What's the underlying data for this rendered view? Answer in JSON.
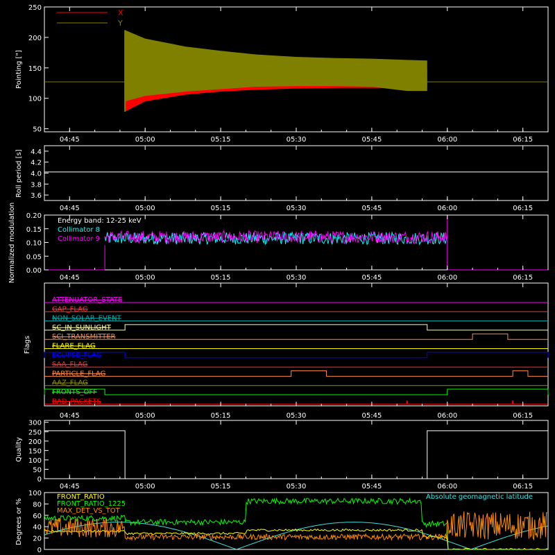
{
  "x_ticks": [
    "04:45",
    "05:00",
    "05:15",
    "05:30",
    "05:45",
    "06:00",
    "06:15"
  ],
  "chart_data": [
    {
      "type": "line",
      "id": "pointing",
      "ylabel": "Pointing [\"]",
      "ylim": [
        45,
        250
      ],
      "yticks": [
        50,
        100,
        150,
        200,
        250
      ],
      "legend": "top-left",
      "series": [
        {
          "name": "X",
          "color": "#ff0000"
        },
        {
          "name": "Y",
          "color": "#808000"
        }
      ],
      "envelope": {
        "x": [
          "04:56",
          "05:00",
          "05:08",
          "05:15",
          "05:22",
          "05:30",
          "05:38",
          "05:45",
          "05:52",
          "05:56"
        ],
        "x_upper": [
          212,
          175,
          160,
          156,
          155,
          152,
          150,
          148,
          147,
          147
        ],
        "x_lower": [
          78,
          95,
          106,
          111,
          114,
          116,
          117,
          117,
          117,
          117
        ],
        "y_upper": [
          212,
          198,
          185,
          178,
          172,
          168,
          166,
          165,
          163,
          162
        ],
        "y_lower": [
          95,
          104,
          111,
          115,
          119,
          120,
          120,
          119,
          112,
          112
        ]
      },
      "baseline": 127
    },
    {
      "type": "line",
      "id": "roll",
      "ylabel": "Roll period [s]",
      "ylim": [
        3.5,
        4.5
      ],
      "yticks": [
        "3.6",
        "3.8",
        "4.0",
        "4.2",
        "4.4"
      ],
      "value": 4.02
    },
    {
      "type": "line",
      "id": "modulation",
      "ylabel": "Normalized modulation",
      "ylim": [
        0,
        0.2
      ],
      "yticks": [
        "0.00",
        "0.05",
        "0.10",
        "0.15",
        "0.20"
      ],
      "annotation": "Energy band: 12-25 keV",
      "legend": "top-left",
      "series": [
        {
          "name": "Collimator 8",
          "color": "#00ffff",
          "mean": 0.115
        },
        {
          "name": "Collimator 9",
          "color": "#ff00ff",
          "mean": 0.12
        }
      ],
      "start": "04:52",
      "end": "06:00"
    },
    {
      "type": "line",
      "id": "flags",
      "ylabel": "Flags",
      "flags": [
        {
          "name": "ATTENUATOR_STATE",
          "color": "#ff00ff",
          "segments": []
        },
        {
          "name": "GAP_FLAG",
          "color": "#ff3030",
          "segments": []
        },
        {
          "name": "NON_SOLAR_EVENT",
          "color": "#00b0b0",
          "segments": []
        },
        {
          "name": "SC_IN_SUNLIGHT",
          "color": "#ffffa0",
          "segments": [
            [
              "04:56",
              "05:56"
            ]
          ]
        },
        {
          "name": "SCI_TRANSMITTER",
          "color": "#ff8c40",
          "segments": [
            [
              "06:05",
              "06:12"
            ]
          ]
        },
        {
          "name": "FLARE_FLAG",
          "color": "#ffff00",
          "segments": []
        },
        {
          "name": "ECLIPSE_FLAG",
          "color": "#0000ff",
          "segments": [
            [
              "04:40",
              "04:56"
            ],
            [
              "05:56",
              "06:20"
            ]
          ]
        },
        {
          "name": "SAA_FLAG",
          "color": "#ff3030",
          "segments": []
        },
        {
          "name": "PARTICLE_FLAG",
          "color": "#ff8c40",
          "segments": [
            [
              "05:29",
              "05:36"
            ],
            [
              "06:13",
              "06:16"
            ]
          ]
        },
        {
          "name": "AAZ_FLAG",
          "color": "#909000",
          "segments": []
        },
        {
          "name": "FRONTS_OFF",
          "color": "#00ff00",
          "segments": [
            [
              "04:40",
              "04:52"
            ],
            [
              "06:00",
              "06:20"
            ]
          ]
        },
        {
          "name": "BAD_PACKETS",
          "color": "#ff0000",
          "segments": []
        }
      ]
    },
    {
      "type": "line",
      "id": "quality",
      "ylabel": "Quality",
      "ylim": [
        0,
        310
      ],
      "yticks": [
        0,
        50,
        100,
        150,
        200,
        250,
        300
      ],
      "value_high": 255,
      "value_low": 0,
      "high_segments": [
        [
          "04:40",
          "04:56"
        ],
        [
          "05:56",
          "06:20"
        ]
      ]
    },
    {
      "type": "line",
      "id": "ratios",
      "ylabel": "Degrees or %",
      "ylim": [
        0,
        100
      ],
      "yticks": [
        0,
        20,
        40,
        60,
        80,
        100
      ],
      "legend": "top-left",
      "series": [
        {
          "name": "FRONT_RATIO",
          "color": "#ffff00"
        },
        {
          "name": "FRONT_RATIO_1225",
          "color": "#00ff00"
        },
        {
          "name": "MAX_DET_VS_TOT",
          "color": "#ff8c00"
        },
        {
          "name": "Absolute geomagnetic latitude",
          "color": "#40e0e0"
        }
      ]
    }
  ]
}
